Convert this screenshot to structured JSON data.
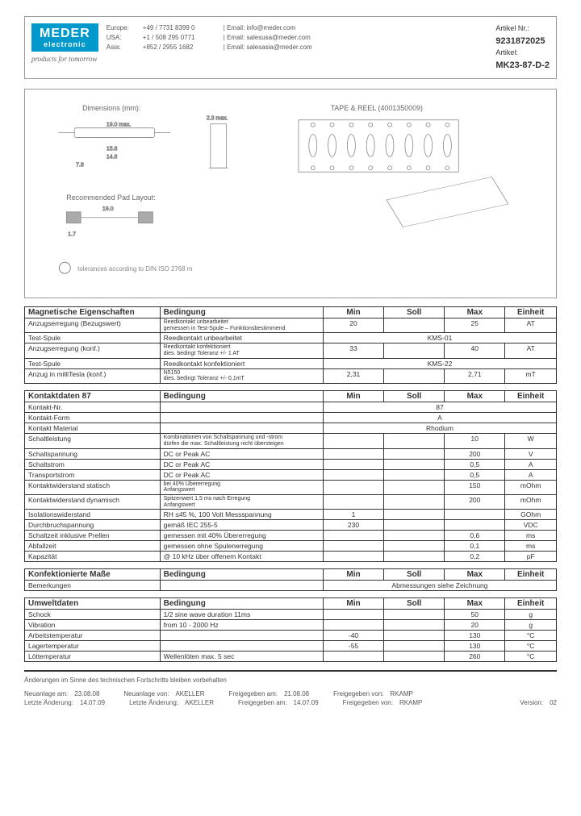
{
  "logo": {
    "main": "MEDER",
    "sub": "electronic"
  },
  "tagline": "products for tomorrow",
  "contacts": [
    {
      "region": "Europe:",
      "phone": "+49 / 7731 8399 0",
      "email": "| Email: info@meder.com"
    },
    {
      "region": "USA:",
      "phone": "+1 / 508 295 0771",
      "email": "| Email: salesusa@meder.com"
    },
    {
      "region": "Asia:",
      "phone": "+852 / 2955 1682",
      "email": "| Email: salesasia@meder.com"
    }
  ],
  "article": {
    "num_label": "Artikel Nr.:",
    "num": "9231872025",
    "name_label": "Artikel:",
    "name": "MK23-87-D-2"
  },
  "diagram": {
    "title_dim": "Dimensions (mm):",
    "title_pad": "Recommended Pad Layout:",
    "title_tape": "TAPE & REEL (4001350009)",
    "tol_note": "tolerances according to DIN ISO 2768 m"
  },
  "tables": {
    "mag": {
      "title": "Magnetische Eigenschaften",
      "cond": "Bedingung",
      "cols": [
        "Min",
        "Soll",
        "Max",
        "Einheit"
      ],
      "rows": [
        {
          "label": "Anzugserregung (Bezugswert)",
          "cond": "Reedkontakt unbearbeitet\ngemessen in Test-Spule – Funktionsbestimmend",
          "min": "20",
          "soll": "",
          "max": "25",
          "unit": "AT"
        },
        {
          "label": "Test-Spule",
          "cond": "Reedkontakt unbearbeitet",
          "span": "KMS-01"
        },
        {
          "label": "Anzugserregung (konf.)",
          "cond": "Reedkontakt konfektioniert\ndies. bedingt Toleranz +/- 1 AT",
          "min": "33",
          "soll": "",
          "max": "40",
          "unit": "AT"
        },
        {
          "label": "Test-Spule",
          "cond": "Reedkontakt konfektioniert",
          "span": "KMS-22"
        },
        {
          "label": "Anzug in milliTesla (konf.)",
          "cond": "N5150\ndies. bedingt Toleranz +/- 0,1mT",
          "min": "2,31",
          "soll": "",
          "max": "2,71",
          "unit": "mT"
        }
      ]
    },
    "contact": {
      "title": "Kontaktdaten 87",
      "cond": "Bedingung",
      "cols": [
        "Min",
        "Soll",
        "Max",
        "Einheit"
      ],
      "rows": [
        {
          "label": "Kontakt-Nr.",
          "cond": "",
          "span": "87"
        },
        {
          "label": "Kontakt-Form",
          "cond": "",
          "span": "A"
        },
        {
          "label": "Kontakt Material",
          "cond": "",
          "span": "Rhodium"
        },
        {
          "label": "Schaltleistung",
          "cond": "Kombinationen von Schaltspannung und -strom\ndürfen die max. Schaltleistung nicht übersteigen",
          "min": "",
          "soll": "",
          "max": "10",
          "unit": "W"
        },
        {
          "label": "Schaltspannung",
          "cond": "DC or Peak AC",
          "min": "",
          "soll": "",
          "max": "200",
          "unit": "V"
        },
        {
          "label": "Schaltstrom",
          "cond": "DC or Peak AC",
          "min": "",
          "soll": "",
          "max": "0,5",
          "unit": "A"
        },
        {
          "label": "Transportstrom",
          "cond": "DC or Peak AC",
          "min": "",
          "soll": "",
          "max": "0,5",
          "unit": "A"
        },
        {
          "label": "Kontaktwiderstand statisch",
          "cond": "bei 40% Übererregung\nAnfangswert",
          "min": "",
          "soll": "",
          "max": "150",
          "unit": "mOhm"
        },
        {
          "label": "Kontaktwiderstand dynamisch",
          "cond": "Spitzenwert 1,5 ms nach Erregung\nAnfangswert",
          "min": "",
          "soll": "",
          "max": "200",
          "unit": "mOhm"
        },
        {
          "label": "Isolationswiderstand",
          "cond": "RH ≤45 %, 100 Volt Messspannung",
          "min": "1",
          "soll": "",
          "max": "",
          "unit": "GOhm"
        },
        {
          "label": "Durchbruchspannung",
          "cond": "gemäß IEC 255-5",
          "min": "230",
          "soll": "",
          "max": "",
          "unit": "VDC"
        },
        {
          "label": "Schaltzeit inklusive Prellen",
          "cond": "gemessen mit 40% Übererregung",
          "min": "",
          "soll": "",
          "max": "0,6",
          "unit": "ms"
        },
        {
          "label": "Abfallzeit",
          "cond": "gemessen ohne Spulenerregung",
          "min": "",
          "soll": "",
          "max": "0,1",
          "unit": "ms"
        },
        {
          "label": "Kapazität",
          "cond": "@ 10 kHz über offenem Kontakt",
          "min": "",
          "soll": "",
          "max": "0,2",
          "unit": "pF"
        }
      ]
    },
    "konf": {
      "title": "Konfektionierte Maße",
      "cond": "Bedingung",
      "cols": [
        "Min",
        "Soll",
        "Max",
        "Einheit"
      ],
      "rows": [
        {
          "label": "Bemerkungen",
          "cond": "",
          "span": "Abmessungen siehe Zeichnung"
        }
      ]
    },
    "env": {
      "title": "Umweltdaten",
      "cond": "Bedingung",
      "cols": [
        "Min",
        "Soll",
        "Max",
        "Einheit"
      ],
      "rows": [
        {
          "label": "Schock",
          "cond": "1/2 sine wave duration 11ms",
          "min": "",
          "soll": "",
          "max": "50",
          "unit": "g"
        },
        {
          "label": "Vibration",
          "cond": "from 10 - 2000 Hz",
          "min": "",
          "soll": "",
          "max": "20",
          "unit": "g"
        },
        {
          "label": "Arbeitstemperatur",
          "cond": "",
          "min": "-40",
          "soll": "",
          "max": "130",
          "unit": "°C"
        },
        {
          "label": "Lagertemperatur",
          "cond": "",
          "min": "-55",
          "soll": "",
          "max": "130",
          "unit": "°C"
        },
        {
          "label": "Löttemperatur",
          "cond": "Wellenlöten max. 5 sec",
          "min": "",
          "soll": "",
          "max": "260",
          "unit": "°C"
        }
      ]
    }
  },
  "footer": {
    "note": "Änderungen im Sinne des technischen Fortschritts bleiben vorbehalten",
    "row1": [
      {
        "k": "Neuanlage am:",
        "v": "23.08.08"
      },
      {
        "k": "Neuanlage von:",
        "v": "AKELLER"
      },
      {
        "k": "Freigegeben am:",
        "v": "21.08.08"
      },
      {
        "k": "Freigegeben von:",
        "v": "RKAMP"
      }
    ],
    "row2": [
      {
        "k": "Letzte Änderung:",
        "v": "14.07.09"
      },
      {
        "k": "Letzte Änderung:",
        "v": "AKELLER"
      },
      {
        "k": "Freigegeben am:",
        "v": "14.07.09"
      },
      {
        "k": "Freigegeben von:",
        "v": "RKAMP"
      }
    ],
    "version_k": "Version:",
    "version_v": "02"
  }
}
